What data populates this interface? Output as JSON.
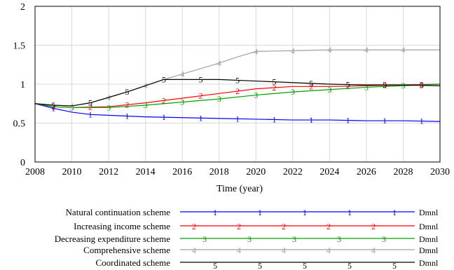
{
  "chart_data": {
    "type": "line",
    "title": "",
    "xlabel": "Time (year)",
    "ylabel": "",
    "xlim": [
      2008,
      2030
    ],
    "ylim": [
      0,
      2
    ],
    "x_ticks": [
      2008,
      2010,
      2012,
      2014,
      2016,
      2018,
      2020,
      2022,
      2024,
      2026,
      2028,
      2030
    ],
    "y_ticks": [
      0,
      0.5,
      1,
      1.5,
      2
    ],
    "grid": true,
    "legend_position": "bottom",
    "series": [
      {
        "name": "Natural continuation scheme",
        "marker": "1",
        "unit": "Dmnl",
        "color": "#0000ff",
        "x": [
          2008,
          2009,
          2010,
          2011,
          2012,
          2014,
          2016,
          2018,
          2020,
          2022,
          2024,
          2026,
          2028,
          2030
        ],
        "y": [
          0.75,
          0.69,
          0.64,
          0.61,
          0.6,
          0.58,
          0.57,
          0.56,
          0.55,
          0.54,
          0.54,
          0.53,
          0.53,
          0.52
        ]
      },
      {
        "name": "Increasing income scheme",
        "marker": "2",
        "unit": "Dmnl",
        "color": "#ff0000",
        "x": [
          2008,
          2009,
          2010,
          2012,
          2014,
          2016,
          2018,
          2020,
          2022,
          2024,
          2026,
          2028,
          2030
        ],
        "y": [
          0.75,
          0.71,
          0.7,
          0.71,
          0.76,
          0.82,
          0.88,
          0.94,
          0.97,
          0.97,
          0.98,
          0.99,
          1.0
        ]
      },
      {
        "name": "Decreasing expenditure scheme",
        "marker": "3",
        "unit": "Dmnl",
        "color": "#00a000",
        "x": [
          2008,
          2009,
          2010,
          2012,
          2014,
          2016,
          2018,
          2020,
          2022,
          2024,
          2026,
          2028,
          2030
        ],
        "y": [
          0.75,
          0.71,
          0.7,
          0.7,
          0.73,
          0.77,
          0.81,
          0.86,
          0.9,
          0.93,
          0.96,
          0.98,
          1.0
        ]
      },
      {
        "name": "Comprehensive scheme",
        "marker": "4",
        "unit": "Dmnl",
        "color": "#a0a0a0",
        "x": [
          2008,
          2009,
          2010,
          2011,
          2012,
          2013,
          2014,
          2015,
          2016,
          2017,
          2018,
          2019,
          2020,
          2022,
          2024,
          2026,
          2028,
          2030
        ],
        "y": [
          0.75,
          0.73,
          0.72,
          0.76,
          0.83,
          0.9,
          0.98,
          1.06,
          1.13,
          1.2,
          1.27,
          1.35,
          1.42,
          1.43,
          1.44,
          1.44,
          1.44,
          1.44
        ]
      },
      {
        "name": "Coordinated scheme",
        "marker": "5",
        "unit": "Dmnl",
        "color": "#000000",
        "x": [
          2008,
          2009,
          2010,
          2011,
          2012,
          2013,
          2014,
          2015,
          2016,
          2018,
          2020,
          2022,
          2024,
          2026,
          2028,
          2030
        ],
        "y": [
          0.75,
          0.73,
          0.72,
          0.76,
          0.83,
          0.9,
          0.98,
          1.06,
          1.06,
          1.06,
          1.04,
          1.02,
          1.0,
          0.99,
          0.99,
          0.98
        ]
      }
    ]
  }
}
